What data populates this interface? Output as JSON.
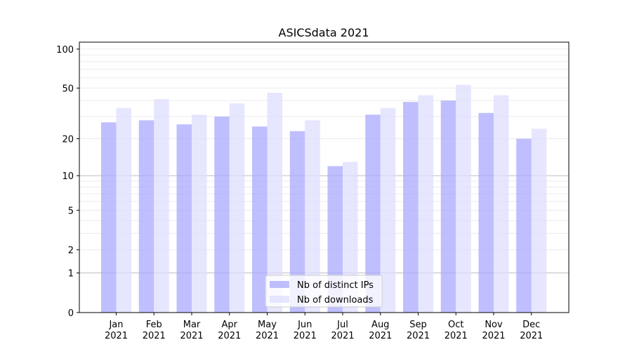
{
  "chart_data": {
    "type": "bar",
    "title": "ASICSdata 2021",
    "xlabel": "",
    "ylabel": "",
    "yscale": "log(1+y)",
    "ylim": [
      0,
      113
    ],
    "yticks": [
      0,
      1,
      2,
      5,
      10,
      20,
      50,
      100
    ],
    "grid": true,
    "legend_position": "bottom-center",
    "categories": [
      "Jan\n2021",
      "Feb\n2021",
      "Mar\n2021",
      "Apr\n2021",
      "May\n2021",
      "Jun\n2021",
      "Jul\n2021",
      "Aug\n2021",
      "Sep\n2021",
      "Oct\n2021",
      "Nov\n2021",
      "Dec\n2021"
    ],
    "series": [
      {
        "name": "Nb of distinct IPs",
        "color": "#aaaaff",
        "values": [
          27,
          28,
          26,
          30,
          25,
          23,
          12,
          31,
          39,
          40,
          32,
          20
        ]
      },
      {
        "name": "Nb of downloads",
        "color": "#ddddff",
        "values": [
          35,
          41,
          31,
          38,
          46,
          28,
          13,
          35,
          44,
          53,
          44,
          24
        ]
      }
    ]
  }
}
